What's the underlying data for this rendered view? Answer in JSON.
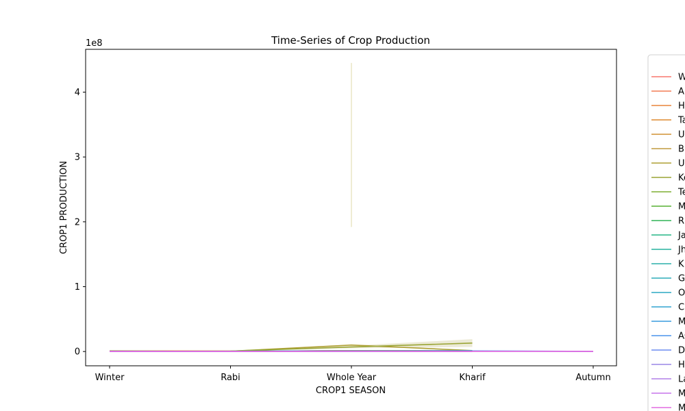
{
  "chart_data": {
    "type": "line",
    "title": "Time-Series of Crop Production",
    "xlabel": "CROP1 SEASON",
    "ylabel": "CROP1 PRODUCTION",
    "y_offset_label": "1e8",
    "categories": [
      "Winter",
      "Rabi",
      "Whole Year",
      "Kharif",
      "Autumn"
    ],
    "ylim": [
      -22000000,
      466000000
    ],
    "yticks": [
      {
        "value": 0,
        "label": "0"
      },
      {
        "value": 100000000,
        "label": "1"
      },
      {
        "value": 200000000,
        "label": "2"
      },
      {
        "value": 300000000,
        "label": "3"
      },
      {
        "value": 400000000,
        "label": "4"
      }
    ],
    "grid": false,
    "legend_position": "right (outside plot)",
    "series": [
      {
        "name": "W",
        "color": "#f8766d",
        "values": [
          800000,
          300000,
          1500000,
          1200000,
          null
        ]
      },
      {
        "name": "A",
        "color": "#f27c55",
        "values": [
          600000,
          400000,
          1000000,
          800000,
          null
        ]
      },
      {
        "name": "H",
        "color": "#e8833a",
        "values": [
          500000,
          600000,
          1200000,
          900000,
          null
        ]
      },
      {
        "name": "Ta",
        "color": "#dd8a2f",
        "values": [
          1000000,
          500000,
          1300000,
          1000000,
          null
        ]
      },
      {
        "name": "U",
        "color": "#d09232",
        "values": [
          700000,
          400000,
          800000,
          700000,
          null
        ]
      },
      {
        "name": "B",
        "color": "#c19a3f",
        "values": [
          900000,
          300000,
          1100000,
          1000000,
          null
        ]
      },
      {
        "name": "U",
        "color": "#ae9f33",
        "values": [
          600000,
          500000,
          10000000,
          1500000,
          null
        ]
      },
      {
        "name": "Ke",
        "color": "#9aa434",
        "values": [
          null,
          700000,
          7000000,
          13000000,
          null
        ]
      },
      {
        "name": "Te",
        "color": "#7fad30",
        "values": [
          400000,
          300000,
          900000,
          1100000,
          null
        ]
      },
      {
        "name": "M",
        "color": "#56b032",
        "values": [
          500000,
          400000,
          1000000,
          800000,
          null
        ]
      },
      {
        "name": "R",
        "color": "#2eb456",
        "values": [
          400000,
          500000,
          1200000,
          1000000,
          null
        ]
      },
      {
        "name": "Ja",
        "color": "#25b586",
        "values": [
          300000,
          300000,
          600000,
          500000,
          null
        ]
      },
      {
        "name": "Jh",
        "color": "#27b29e",
        "values": [
          400000,
          400000,
          700000,
          800000,
          null
        ]
      },
      {
        "name": "K",
        "color": "#2aafaa",
        "values": [
          300000,
          300000,
          500000,
          400000,
          null
        ]
      },
      {
        "name": "G",
        "color": "#2bacb8",
        "values": [
          500000,
          400000,
          900000,
          1200000,
          null
        ]
      },
      {
        "name": "O",
        "color": "#2aa8c4",
        "values": [
          400000,
          300000,
          800000,
          1100000,
          null
        ]
      },
      {
        "name": "C",
        "color": "#31a3d1",
        "values": [
          300000,
          300000,
          600000,
          700000,
          null
        ]
      },
      {
        "name": "M",
        "color": "#399cde",
        "values": [
          200000,
          200000,
          400000,
          500000,
          null
        ]
      },
      {
        "name": "As",
        "color": "#4a94ec",
        "values": [
          300000,
          300000,
          700000,
          900000,
          200000
        ]
      },
      {
        "name": "D",
        "color": "#6b8cf0",
        "values": [
          100000,
          200000,
          300000,
          200000,
          null
        ]
      },
      {
        "name": "H",
        "color": "#9a86e6",
        "values": [
          200000,
          300000,
          500000,
          400000,
          null
        ]
      },
      {
        "name": "La",
        "color": "#b17fe8",
        "values": [
          100000,
          100000,
          200000,
          100000,
          null
        ]
      },
      {
        "name": "M",
        "color": "#c774ec",
        "values": [
          200000,
          300000,
          400000,
          300000,
          100000
        ]
      },
      {
        "name": "M",
        "color": "#e26be0",
        "values": [
          300000,
          200000,
          500000,
          400000,
          200000
        ]
      }
    ]
  }
}
